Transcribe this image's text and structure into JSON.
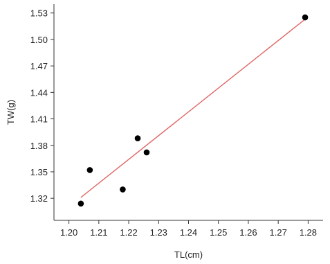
{
  "chart_data": {
    "type": "scatter",
    "xlabel": "TL(cm)",
    "ylabel": "TW(g)",
    "xlim": [
      1.195,
      1.285
    ],
    "ylim": [
      1.295,
      1.54
    ],
    "x_ticks": [
      "1.20",
      "1.21",
      "1.22",
      "1.23",
      "1.24",
      "1.25",
      "1.26",
      "1.27",
      "1.28"
    ],
    "y_ticks": [
      "1.32",
      "1.35",
      "1.38",
      "1.41",
      "1.44",
      "1.47",
      "1.50",
      "1.53"
    ],
    "grid": false,
    "colors": {
      "points": "#000000",
      "fit_line": "#e06666",
      "axis": "#333333"
    },
    "series": [
      {
        "type": "scatter",
        "points": [
          {
            "x": 1.204,
            "y": 1.314
          },
          {
            "x": 1.207,
            "y": 1.352
          },
          {
            "x": 1.218,
            "y": 1.33
          },
          {
            "x": 1.223,
            "y": 1.388
          },
          {
            "x": 1.226,
            "y": 1.372
          },
          {
            "x": 1.279,
            "y": 1.525
          }
        ]
      },
      {
        "type": "line",
        "points": [
          {
            "x": 1.204,
            "y": 1.321
          },
          {
            "x": 1.279,
            "y": 1.523
          }
        ]
      }
    ]
  }
}
